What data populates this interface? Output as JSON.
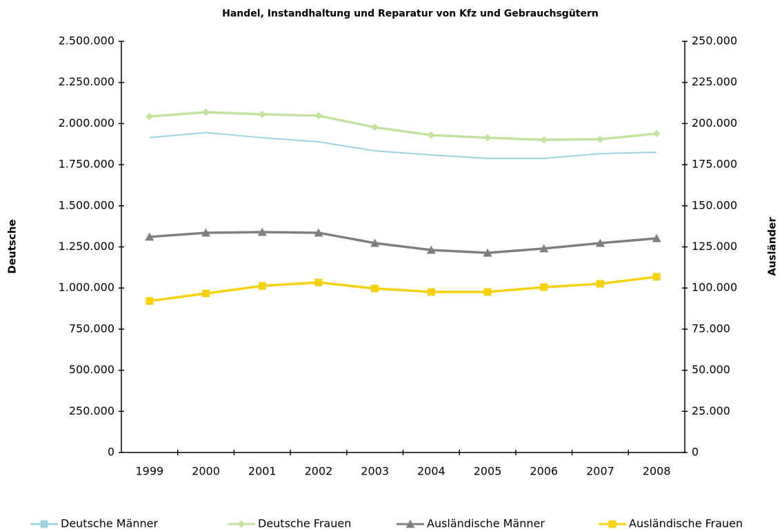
{
  "chart_data": {
    "type": "line",
    "title": "Handel, Instandhaltung und Reparatur von Kfz und Gebrauchsgütern",
    "y_label": "Deutsche",
    "y2_label": "Ausländer",
    "categories": [
      "1999",
      "2000",
      "2001",
      "2002",
      "2003",
      "2004",
      "2005",
      "2006",
      "2007",
      "2008"
    ],
    "ylim": [
      0,
      2500000
    ],
    "yticks": [
      0,
      {
        "value": 250000,
        "label": "250.000"
      },
      {
        "value": 500000,
        "label": "500.000"
      },
      {
        "value": 750000,
        "label": "750.000"
      },
      {
        "value": 1000000,
        "label": "1.000.000"
      },
      {
        "value": 1250000,
        "label": "1.250.000"
      },
      {
        "value": 1500000,
        "label": "1.500.000"
      },
      {
        "value": 1750000,
        "label": "1.750.000"
      },
      {
        "value": 2000000,
        "label": "2.000.000"
      },
      {
        "value": 2250000,
        "label": "2.250.000"
      },
      {
        "value": 2500000,
        "label": "2.500.000"
      }
    ],
    "y2lim": [
      0,
      250000
    ],
    "y2ticks": [
      0,
      {
        "value": 25000,
        "label": "25.000"
      },
      {
        "value": 50000,
        "label": "50.000"
      },
      {
        "value": 75000,
        "label": "75.000"
      },
      {
        "value": 100000,
        "label": "100.000"
      },
      {
        "value": 125000,
        "label": "125.000"
      },
      {
        "value": 150000,
        "label": "150.000"
      },
      {
        "value": 175000,
        "label": "175.000"
      },
      {
        "value": 200000,
        "label": "200.000"
      },
      {
        "value": 225000,
        "label": "225.000"
      },
      {
        "value": 250000,
        "label": "250.000"
      }
    ],
    "legend": "bottom",
    "series": [
      {
        "name": "Deutsche Männer",
        "color": "#9dd3e0",
        "marker": "none",
        "values": [
          1915000,
          1945000,
          1914000,
          1889000,
          1834000,
          1809000,
          1788000,
          1788000,
          1817000,
          1826000
        ]
      },
      {
        "name": "Deutsche Frauen",
        "color": "#c3e2a0",
        "marker": "diamond",
        "values": [
          2043000,
          2069000,
          2056000,
          2048000,
          1977000,
          1930000,
          1914000,
          1901000,
          1905000,
          1939000
        ]
      },
      {
        "name": "Ausländische Männer",
        "color": "#7f7f7f",
        "marker": "triangle",
        "axis": "y2",
        "values": [
          131100,
          133600,
          134000,
          133600,
          127300,
          123100,
          121400,
          124000,
          127300,
          130200
        ]
      },
      {
        "name": "Ausländische Frauen",
        "color": "#f5d10f",
        "marker": "square",
        "axis": "y2",
        "values": [
          92100,
          96700,
          101300,
          103400,
          99700,
          97600,
          97600,
          100500,
          102600,
          106800
        ]
      }
    ]
  }
}
